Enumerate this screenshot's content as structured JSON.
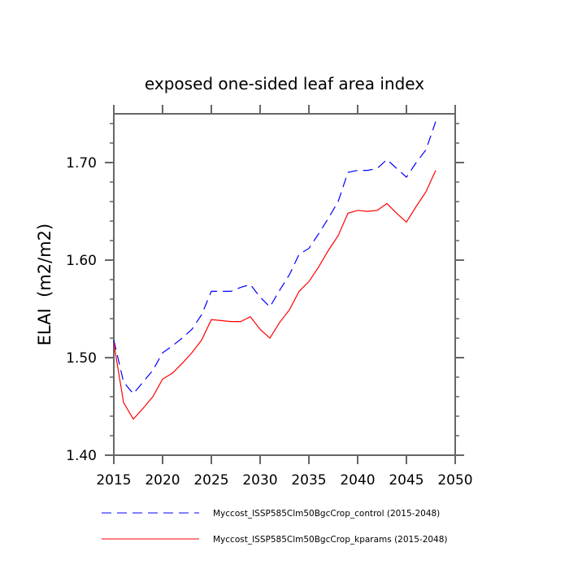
{
  "chart_data": {
    "type": "line",
    "title": "exposed one-sided leaf area index",
    "xlabel": "",
    "ylabel": "ELAI  (m2/m2)",
    "xlim": [
      2015,
      2050
    ],
    "ylim": [
      1.4,
      1.75
    ],
    "x_ticks": [
      2015,
      2020,
      2025,
      2030,
      2035,
      2040,
      2045,
      2050
    ],
    "x_tick_labels": [
      "2015",
      "2020",
      "2025",
      "2030",
      "2035",
      "2040",
      "2045",
      "2050"
    ],
    "y_ticks": [
      1.4,
      1.5,
      1.6,
      1.7
    ],
    "y_tick_labels": [
      "1.40",
      "1.50",
      "1.60",
      "1.70"
    ],
    "grid": false,
    "legend_position": "bottom",
    "x": [
      2015,
      2016,
      2017,
      2018,
      2019,
      2020,
      2021,
      2022,
      2023,
      2024,
      2025,
      2026,
      2027,
      2028,
      2029,
      2030,
      2031,
      2032,
      2033,
      2034,
      2035,
      2036,
      2037,
      2038,
      2039,
      2040,
      2041,
      2042,
      2043,
      2044,
      2045,
      2046,
      2047,
      2048
    ],
    "series": [
      {
        "name": "Myccost_ISSP585Clm50BgcCrop_control (2015-2048)",
        "color": "#0000ff",
        "dash": "dashed",
        "values": [
          1.518,
          1.475,
          1.463,
          1.475,
          1.487,
          1.505,
          1.512,
          1.52,
          1.529,
          1.544,
          1.568,
          1.568,
          1.568,
          1.572,
          1.575,
          1.562,
          1.552,
          1.569,
          1.585,
          1.606,
          1.612,
          1.627,
          1.643,
          1.66,
          1.69,
          1.692,
          1.692,
          1.694,
          1.703,
          1.694,
          1.685,
          1.7,
          1.713,
          1.742
        ]
      },
      {
        "name": "Myccost_ISSP585Clm50BgcCrop_kparams (2015-2048)",
        "color": "#ff0000",
        "dash": "solid",
        "values": [
          1.515,
          1.454,
          1.437,
          1.448,
          1.46,
          1.478,
          1.484,
          1.494,
          1.505,
          1.518,
          1.539,
          1.538,
          1.537,
          1.537,
          1.542,
          1.529,
          1.52,
          1.536,
          1.549,
          1.568,
          1.578,
          1.593,
          1.61,
          1.625,
          1.648,
          1.651,
          1.65,
          1.651,
          1.658,
          1.648,
          1.639,
          1.655,
          1.67,
          1.692
        ]
      }
    ]
  }
}
